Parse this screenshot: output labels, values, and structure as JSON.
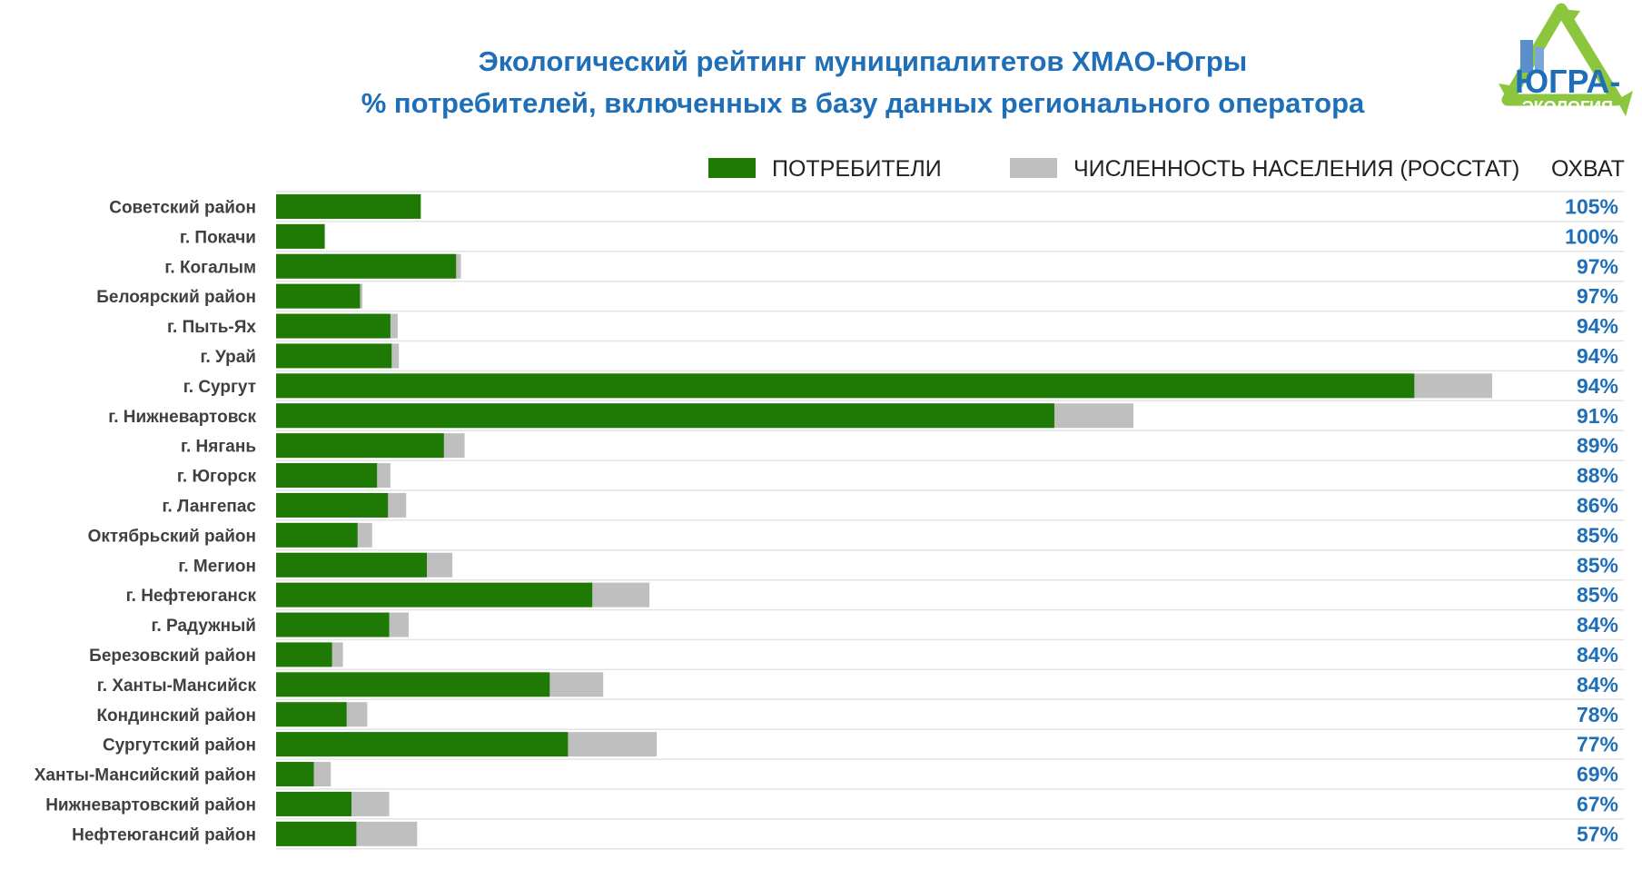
{
  "header": {
    "title_line1": "Экологический рейтинг муниципалитетов ХМАО-Югры",
    "title_line2": "% потребителей, включенных в базу данных регионального оператора"
  },
  "logo": {
    "text_top": "ЮГРА-",
    "text_bottom": "ЭКОЛОГИЯ",
    "icon": "recycle-arrows-icon"
  },
  "colors": {
    "consumers": "#1e7a04",
    "population": "#bfbfbf",
    "title": "#1f6fb8",
    "percent": "#1f6fb8"
  },
  "chart_data": {
    "type": "bar",
    "orientation": "horizontal",
    "stacked": "overlay",
    "legend": [
      {
        "name": "ПОТРЕБИТЕЛИ",
        "color": "#1e7a04"
      },
      {
        "name": "ЧИСЛЕННОСТЬ НАСЕЛЕНИЯ (РОССТАТ)",
        "color": "#bfbfbf"
      }
    ],
    "coverage_header": "ОХВАТ",
    "categories": [
      "Советский район",
      "г. Покачи",
      "г. Когалым",
      "Белоярский район",
      "г. Пыть-Ях",
      "г. Урай",
      "г. Сургут",
      "г. Нижневартовск",
      "г. Нягань",
      "г. Югорск",
      "г. Лангепас",
      "Октябрьский район",
      "г. Мегион",
      "г. Нефтеюганск",
      "г. Радужный",
      "Березовский район",
      "г. Ханты-Мансийск",
      "Кондинский район",
      "Сургутский район",
      "Ханты-Мансийский район",
      "Нижневартовский район",
      "Нефтеюгансий район"
    ],
    "series": [
      {
        "name": "ПОТРЕБИТЕЛИ",
        "values": [
          11.9,
          4.0,
          14.8,
          6.9,
          9.4,
          9.5,
          93.6,
          64.0,
          13.8,
          8.3,
          9.2,
          6.7,
          12.4,
          26.0,
          9.3,
          4.6,
          22.5,
          5.8,
          24.0,
          3.1,
          6.2,
          6.6
        ]
      },
      {
        "name": "ЧИСЛЕННОСТЬ НАСЕЛЕНИЯ (РОССТАТ)",
        "values": [
          11.3,
          4.0,
          15.2,
          7.1,
          10.0,
          10.1,
          100.0,
          70.5,
          15.5,
          9.4,
          10.7,
          7.9,
          14.5,
          30.7,
          10.9,
          5.5,
          26.9,
          7.5,
          31.3,
          4.5,
          9.3,
          11.6
        ]
      }
    ],
    "coverage": [
      "105%",
      "100%",
      "97%",
      "97%",
      "94%",
      "94%",
      "94%",
      "91%",
      "89%",
      "88%",
      "86%",
      "85%",
      "85%",
      "85%",
      "84%",
      "84%",
      "84%",
      "78%",
      "77%",
      "69%",
      "67%",
      "57%"
    ],
    "xlim": [
      0,
      100
    ]
  }
}
